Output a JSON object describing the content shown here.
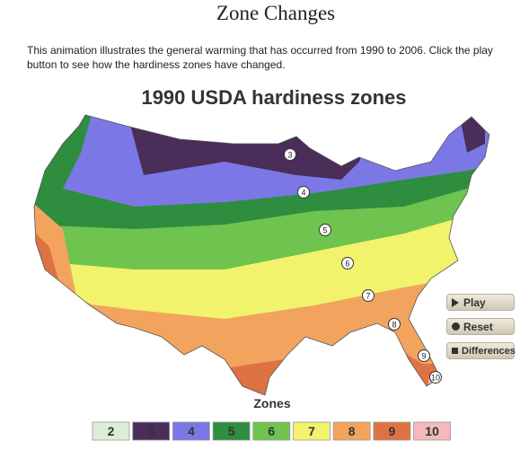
{
  "header": {
    "title": "Zone Changes",
    "description": "This animation illustrates the general warming that has occurred from 1990 to 2006. Click the play button to see how the hardiness zones have changed."
  },
  "map": {
    "title": "1990 USDA hardiness zones",
    "labels": [
      "3",
      "4",
      "5",
      "6",
      "7",
      "8",
      "9",
      "10"
    ]
  },
  "buttons": [
    "Play",
    "Reset",
    "Differences"
  ],
  "legend": {
    "title": "Zones",
    "items": [
      {
        "label": "2",
        "color": "#dcefd6"
      },
      {
        "label": "3",
        "color": "#4a2d58"
      },
      {
        "label": "4",
        "color": "#7b78e6"
      },
      {
        "label": "5",
        "color": "#2f8d3f"
      },
      {
        "label": "6",
        "color": "#6fc34f"
      },
      {
        "label": "7",
        "color": "#f2f26c"
      },
      {
        "label": "8",
        "color": "#f2a45e"
      },
      {
        "label": "9",
        "color": "#df7242"
      },
      {
        "label": "10",
        "color": "#f5b9b9"
      }
    ]
  }
}
